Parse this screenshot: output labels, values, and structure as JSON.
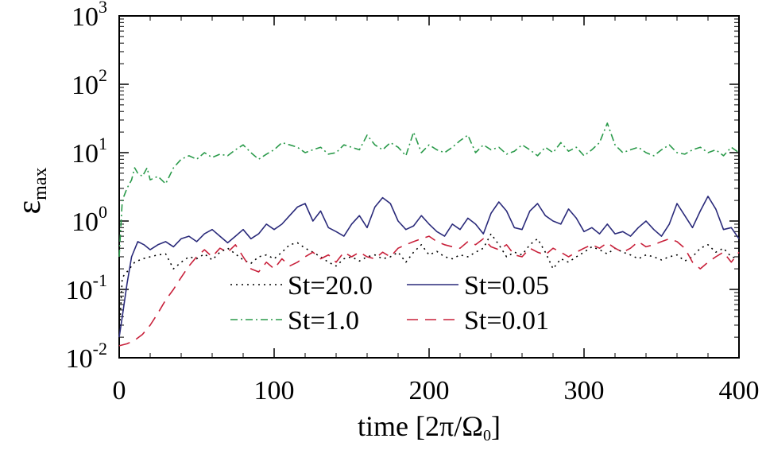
{
  "chart_data": {
    "type": "line",
    "title": "",
    "xlabel": "time [2π/Ω₀]",
    "xlabel_parts": {
      "main": "time [2π/Ω",
      "sub": "0",
      "close": "]"
    },
    "ylabel": "εmax",
    "ylabel_parts": {
      "main": "ε",
      "sub": "max"
    },
    "xlim": [
      0,
      400
    ],
    "ylim": [
      0.01,
      1000
    ],
    "yscale": "log",
    "x_ticks": [
      0,
      100,
      200,
      300,
      400
    ],
    "x_tick_labels": [
      "0",
      "100",
      "200",
      "300",
      "400"
    ],
    "y_ticks": [
      0.01,
      0.1,
      1,
      10,
      100,
      1000
    ],
    "y_tick_labels": [
      {
        "base": "10",
        "exp": "-2"
      },
      {
        "base": "10",
        "exp": "-1"
      },
      {
        "base": "10",
        "exp": "0"
      },
      {
        "base": "10",
        "exp": "1"
      },
      {
        "base": "10",
        "exp": "2"
      },
      {
        "base": "10",
        "exp": "3"
      }
    ],
    "legend_position": "lower-center",
    "series": [
      {
        "name": "St=20.0",
        "color": "#000000",
        "dash": "dotted",
        "x": [
          0,
          2,
          5,
          10,
          15,
          20,
          25,
          30,
          35,
          40,
          45,
          50,
          55,
          60,
          65,
          70,
          75,
          80,
          85,
          90,
          95,
          100,
          105,
          110,
          115,
          120,
          125,
          130,
          135,
          140,
          145,
          150,
          155,
          160,
          165,
          170,
          175,
          180,
          185,
          190,
          195,
          200,
          205,
          210,
          215,
          220,
          225,
          230,
          235,
          240,
          245,
          250,
          255,
          260,
          265,
          270,
          275,
          280,
          285,
          290,
          295,
          300,
          305,
          310,
          315,
          320,
          325,
          330,
          335,
          340,
          345,
          350,
          355,
          360,
          365,
          370,
          375,
          380,
          385,
          390,
          395,
          400
        ],
        "y": [
          0.02,
          0.15,
          0.18,
          0.25,
          0.28,
          0.3,
          0.32,
          0.33,
          0.2,
          0.25,
          0.3,
          0.28,
          0.33,
          0.27,
          0.35,
          0.4,
          0.33,
          0.27,
          0.24,
          0.3,
          0.32,
          0.28,
          0.35,
          0.45,
          0.48,
          0.4,
          0.35,
          0.3,
          0.25,
          0.22,
          0.28,
          0.3,
          0.26,
          0.3,
          0.32,
          0.28,
          0.3,
          0.35,
          0.25,
          0.35,
          0.45,
          0.32,
          0.36,
          0.3,
          0.28,
          0.32,
          0.3,
          0.35,
          0.4,
          0.65,
          0.45,
          0.3,
          0.35,
          0.32,
          0.45,
          0.55,
          0.35,
          0.2,
          0.28,
          0.25,
          0.3,
          0.35,
          0.42,
          0.38,
          0.33,
          0.4,
          0.35,
          0.32,
          0.28,
          0.32,
          0.3,
          0.27,
          0.3,
          0.32,
          0.26,
          0.3,
          0.4,
          0.45,
          0.35,
          0.4,
          0.3,
          0.28
        ]
      },
      {
        "name": "St=0.05",
        "color": "#2a2a7a",
        "dash": "solid",
        "x": [
          0,
          2,
          5,
          8,
          12,
          16,
          20,
          25,
          30,
          35,
          40,
          45,
          50,
          55,
          60,
          65,
          70,
          75,
          80,
          85,
          90,
          95,
          100,
          105,
          110,
          115,
          120,
          125,
          130,
          135,
          140,
          145,
          150,
          155,
          160,
          165,
          170,
          175,
          180,
          185,
          190,
          195,
          200,
          205,
          210,
          215,
          220,
          225,
          230,
          235,
          240,
          245,
          250,
          255,
          260,
          265,
          270,
          275,
          280,
          285,
          290,
          295,
          300,
          305,
          310,
          315,
          320,
          325,
          330,
          335,
          340,
          345,
          350,
          355,
          360,
          365,
          370,
          375,
          380,
          385,
          390,
          395,
          400
        ],
        "y": [
          0.02,
          0.04,
          0.12,
          0.3,
          0.5,
          0.45,
          0.38,
          0.45,
          0.5,
          0.42,
          0.55,
          0.6,
          0.5,
          0.65,
          0.75,
          0.6,
          0.48,
          0.6,
          0.75,
          0.55,
          0.65,
          0.9,
          0.75,
          0.9,
          1.2,
          1.6,
          1.8,
          1.0,
          1.4,
          0.8,
          0.7,
          0.6,
          0.9,
          1.2,
          0.8,
          1.6,
          2.2,
          1.8,
          1.0,
          0.75,
          0.85,
          1.2,
          0.9,
          0.7,
          0.6,
          0.9,
          0.75,
          1.1,
          0.9,
          0.65,
          1.3,
          1.9,
          1.4,
          0.8,
          0.75,
          1.4,
          1.8,
          1.2,
          1.0,
          0.9,
          1.5,
          1.1,
          0.7,
          0.8,
          0.65,
          0.9,
          0.65,
          0.7,
          0.6,
          0.8,
          1.0,
          0.75,
          0.6,
          0.9,
          1.8,
          1.2,
          0.8,
          1.4,
          2.3,
          1.5,
          0.75,
          0.8,
          0.55
        ]
      },
      {
        "name": "St=1.0",
        "color": "#2a9a4a",
        "dash": "dashdot",
        "x": [
          0,
          2,
          5,
          8,
          10,
          12,
          15,
          18,
          20,
          25,
          30,
          35,
          40,
          45,
          50,
          55,
          60,
          65,
          70,
          75,
          80,
          85,
          90,
          95,
          100,
          105,
          110,
          115,
          120,
          125,
          130,
          135,
          140,
          145,
          150,
          155,
          160,
          165,
          170,
          175,
          180,
          185,
          190,
          195,
          200,
          205,
          210,
          215,
          220,
          225,
          230,
          235,
          240,
          245,
          250,
          255,
          260,
          265,
          270,
          275,
          280,
          285,
          290,
          295,
          300,
          305,
          310,
          315,
          320,
          325,
          330,
          335,
          340,
          345,
          350,
          355,
          360,
          365,
          370,
          375,
          380,
          385,
          390,
          395,
          400
        ],
        "y": [
          0.3,
          2.0,
          3.0,
          4.0,
          6.0,
          5.0,
          4.5,
          6.0,
          4.0,
          4.5,
          3.5,
          6.0,
          8.0,
          9.0,
          8.0,
          10.0,
          8.5,
          9.5,
          9.0,
          11.0,
          13.0,
          10.0,
          8.0,
          9.5,
          11.0,
          14.0,
          13.0,
          12.0,
          10.0,
          11.0,
          12.0,
          9.5,
          10.0,
          13.0,
          12.0,
          11.0,
          18.0,
          13.0,
          11.0,
          14.0,
          12.0,
          9.0,
          20.0,
          10.0,
          13.0,
          11.0,
          10.0,
          12.0,
          15.0,
          18.0,
          10.0,
          13.0,
          11.0,
          12.0,
          9.5,
          10.5,
          13.0,
          11.0,
          9.0,
          12.0,
          10.0,
          14.0,
          10.5,
          12.0,
          9.0,
          11.0,
          14.0,
          27.0,
          13.0,
          10.0,
          11.0,
          12.0,
          10.0,
          9.0,
          11.0,
          13.0,
          10.0,
          9.5,
          11.0,
          12.0,
          10.0,
          11.0,
          9.0,
          12.0,
          10.0
        ]
      },
      {
        "name": "St=0.01",
        "color": "#c8203a",
        "dash": "dashed",
        "x": [
          0,
          5,
          10,
          15,
          20,
          25,
          30,
          35,
          40,
          45,
          50,
          55,
          60,
          65,
          70,
          75,
          80,
          85,
          90,
          95,
          100,
          105,
          110,
          115,
          120,
          125,
          130,
          135,
          140,
          145,
          150,
          155,
          160,
          165,
          170,
          175,
          180,
          185,
          190,
          195,
          200,
          205,
          210,
          215,
          220,
          225,
          230,
          235,
          240,
          245,
          250,
          255,
          260,
          265,
          270,
          275,
          280,
          285,
          290,
          295,
          300,
          305,
          310,
          315,
          320,
          325,
          330,
          335,
          340,
          345,
          350,
          355,
          360,
          365,
          370,
          375,
          380,
          385,
          390,
          395,
          400
        ],
        "y": [
          0.015,
          0.016,
          0.018,
          0.022,
          0.03,
          0.045,
          0.07,
          0.1,
          0.15,
          0.22,
          0.3,
          0.38,
          0.3,
          0.4,
          0.35,
          0.45,
          0.3,
          0.2,
          0.18,
          0.25,
          0.2,
          0.28,
          0.22,
          0.25,
          0.3,
          0.35,
          0.28,
          0.32,
          0.25,
          0.35,
          0.3,
          0.35,
          0.3,
          0.28,
          0.35,
          0.3,
          0.4,
          0.45,
          0.5,
          0.55,
          0.6,
          0.5,
          0.45,
          0.42,
          0.4,
          0.5,
          0.45,
          0.55,
          0.42,
          0.38,
          0.45,
          0.32,
          0.3,
          0.4,
          0.35,
          0.32,
          0.4,
          0.35,
          0.3,
          0.35,
          0.4,
          0.45,
          0.4,
          0.48,
          0.4,
          0.35,
          0.4,
          0.5,
          0.42,
          0.45,
          0.5,
          0.55,
          0.5,
          0.4,
          0.25,
          0.2,
          0.25,
          0.3,
          0.35,
          0.25,
          0.35
        ]
      }
    ]
  }
}
